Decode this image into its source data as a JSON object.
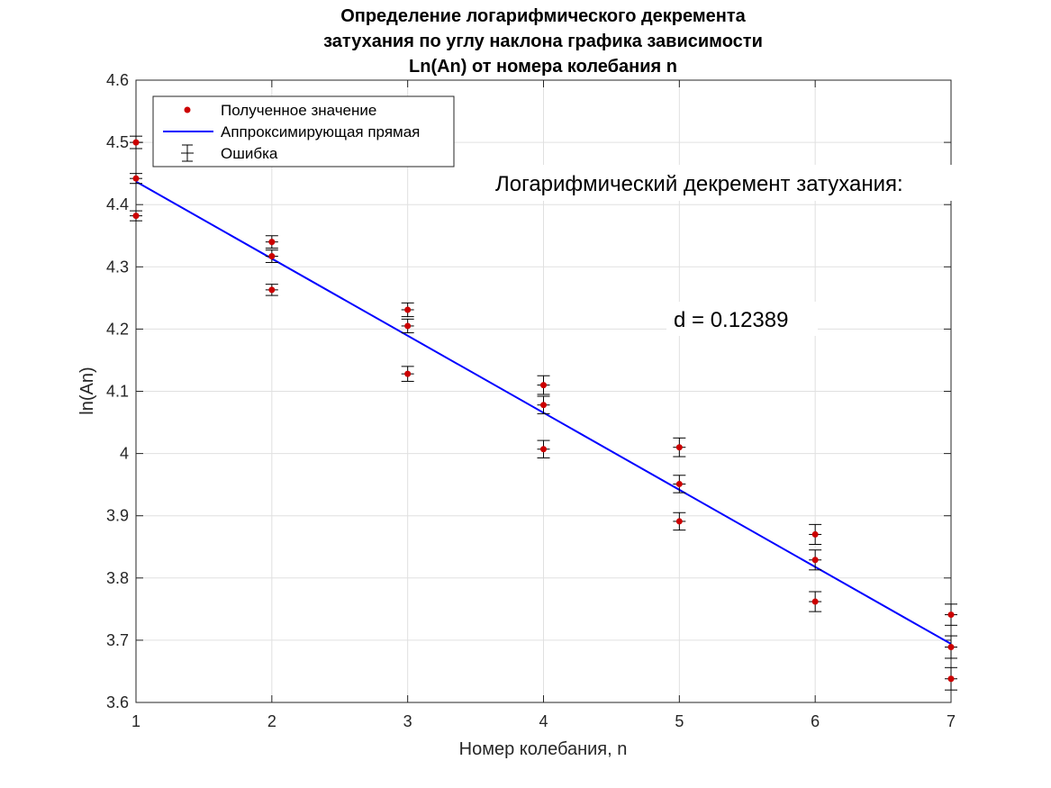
{
  "chart_data": {
    "type": "scatter",
    "title_lines": [
      "Определение логарифмического декремента",
      "затухания по углу наклона графика зависимости",
      "Ln(An) от номера колебания n"
    ],
    "xlabel": "Номер колебания, n",
    "ylabel": "ln(An)",
    "xlim": [
      1,
      7
    ],
    "ylim": [
      3.6,
      4.6
    ],
    "xticks": [
      1,
      2,
      3,
      4,
      5,
      6,
      7
    ],
    "yticks": [
      3.6,
      3.7,
      3.8,
      3.9,
      4,
      4.1,
      4.2,
      4.3,
      4.4,
      4.5,
      4.6
    ],
    "ytick_labels": [
      "3.6",
      "3.7",
      "3.8",
      "3.9",
      "4",
      "4.1",
      "4.2",
      "4.3",
      "4.4",
      "4.5",
      "4.6"
    ],
    "grid": true,
    "legend_placement": "top-left",
    "legend": {
      "points": "Полученное значение",
      "line": "Аппроксимирующая прямая",
      "error": "Ошибка"
    },
    "colors": {
      "points": "#cc0000",
      "line": "#0000ff",
      "error": "#000000"
    },
    "points": [
      {
        "x": 1,
        "y": 4.5,
        "err": 0.01
      },
      {
        "x": 1,
        "y": 4.442,
        "err": 0.008
      },
      {
        "x": 1,
        "y": 4.382,
        "err": 0.008
      },
      {
        "x": 2,
        "y": 4.34,
        "err": 0.01
      },
      {
        "x": 2,
        "y": 4.317,
        "err": 0.01
      },
      {
        "x": 2,
        "y": 4.263,
        "err": 0.009
      },
      {
        "x": 3,
        "y": 4.231,
        "err": 0.011
      },
      {
        "x": 3,
        "y": 4.205,
        "err": 0.011
      },
      {
        "x": 3,
        "y": 4.128,
        "err": 0.012
      },
      {
        "x": 4,
        "y": 4.11,
        "err": 0.015
      },
      {
        "x": 4,
        "y": 4.078,
        "err": 0.014
      },
      {
        "x": 4,
        "y": 4.007,
        "err": 0.014
      },
      {
        "x": 5,
        "y": 4.01,
        "err": 0.015
      },
      {
        "x": 5,
        "y": 3.951,
        "err": 0.014
      },
      {
        "x": 5,
        "y": 3.891,
        "err": 0.014
      },
      {
        "x": 6,
        "y": 3.87,
        "err": 0.016
      },
      {
        "x": 6,
        "y": 3.829,
        "err": 0.016
      },
      {
        "x": 6,
        "y": 3.762,
        "err": 0.016
      },
      {
        "x": 7,
        "y": 3.741,
        "err": 0.017
      },
      {
        "x": 7,
        "y": 3.689,
        "err": 0.018
      },
      {
        "x": 7,
        "y": 3.638,
        "err": 0.018
      }
    ],
    "fit_line": {
      "x": [
        1,
        7
      ],
      "y": [
        4.437,
        3.694
      ]
    },
    "annotations": {
      "heading": "Логарифмический декремент затухания:",
      "value": "d = 0.12389"
    }
  }
}
